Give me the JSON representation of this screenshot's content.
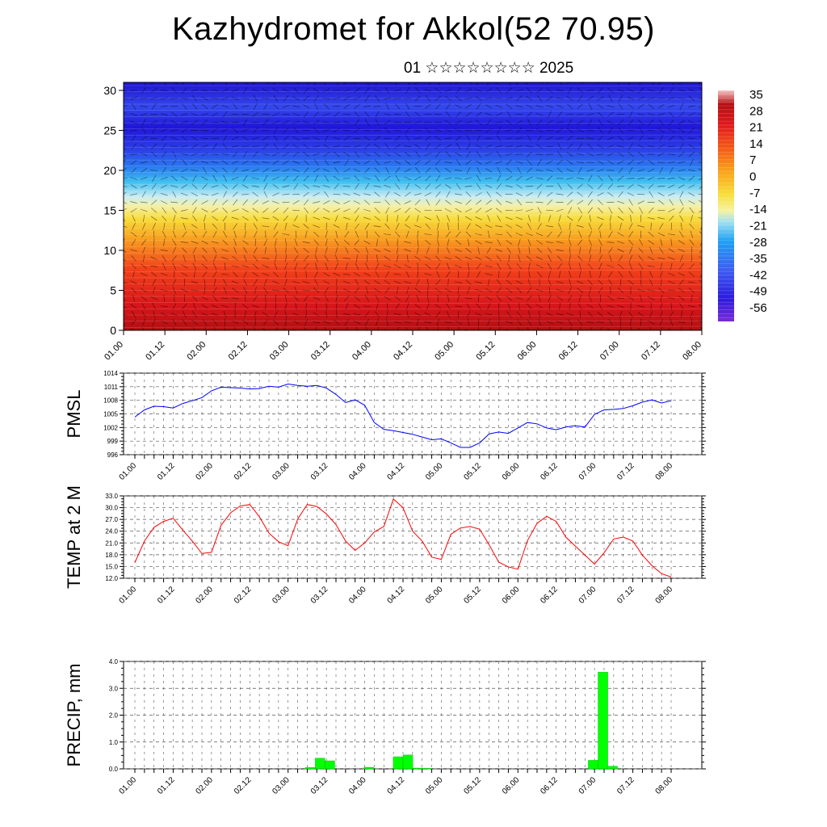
{
  "header": {
    "title": "Kazhydromet for Akkol(52 70.95)",
    "subtitle": "01 ☆☆☆☆☆☆☆☆ 2025"
  },
  "colors": {
    "pmsl_line": "#0000ff",
    "temp_line": "#ff0000",
    "precip_bar": "#00ff00",
    "grid": "#555555",
    "colormap": [
      "#7a2bd9",
      "#2b1bdc",
      "#3d5cf0",
      "#1fa2f4",
      "#3fd0f0",
      "#a8e6f2",
      "#f6f2a0",
      "#f8de3a",
      "#f9a21c",
      "#f45a16",
      "#e3191c",
      "#b30f12",
      "#f5c4c4"
    ]
  },
  "chart_data": [
    {
      "type": "heatmap",
      "title": "",
      "ylim": [
        0,
        31
      ],
      "yticks": [
        0,
        5,
        10,
        15,
        20,
        25,
        30
      ],
      "x_labels": [
        "01.00",
        "01.12",
        "02.00",
        "02.12",
        "03.00",
        "03.12",
        "04.00",
        "04.12",
        "05.00",
        "05.12",
        "06.00",
        "06.12",
        "07.00",
        "07.12",
        "08.00"
      ],
      "colorbar_labels": [
        "35",
        "28",
        "21",
        "14",
        "7",
        "0",
        "-7",
        "-14",
        "-21",
        "-28",
        "-35",
        "-42",
        "-49",
        "-56"
      ],
      "colorbar_range": [
        -63,
        42
      ],
      "overlay": "wind barbs"
    },
    {
      "type": "line",
      "ylabel": "PMSL",
      "ylim": [
        996,
        1014
      ],
      "yticks": [
        "996",
        "999",
        "1002",
        "1005",
        "1008",
        "1011",
        "1014"
      ],
      "x_labels": [
        "01.00",
        "01.12",
        "02.00",
        "02.12",
        "03.00",
        "03.12",
        "04.00",
        "04.12",
        "05.00",
        "05.12",
        "06.00",
        "06.12",
        "07.00",
        "07.12",
        "08.00"
      ],
      "series": [
        {
          "values": [
            1004.3,
            1005.9,
            1006.7,
            1006.6,
            1006.3,
            1007.3,
            1007.9,
            1008.6,
            1010.1,
            1010.9,
            1010.8,
            1010.7,
            1010.5,
            1010.6,
            1011.1,
            1010.9,
            1011.6,
            1011.3,
            1011.1,
            1011.3,
            1010.7,
            1009.3,
            1007.5,
            1008.1,
            1006.9,
            1003.1,
            1001.6,
            1001.3,
            1000.9,
            1000.5,
            999.9,
            999.3,
            999.5,
            998.6,
            997.6,
            997.6,
            998.6,
            1000.6,
            1001.0,
            1000.7,
            1001.9,
            1003.1,
            1002.8,
            1001.9,
            1001.5,
            1002.1,
            1002.4,
            1002.1,
            1004.9,
            1005.9,
            1006.0,
            1006.2,
            1006.8,
            1007.6,
            1008.1,
            1007.4,
            1007.9
          ]
        }
      ]
    },
    {
      "type": "line",
      "ylabel": "TEMP at 2 M",
      "ylim": [
        12.0,
        33.0
      ],
      "yticks": [
        "12.0",
        "15.0",
        "18.0",
        "21.0",
        "24.0",
        "27.0",
        "30.0",
        "33.0"
      ],
      "x_labels": [
        "01.00",
        "01.12",
        "02.00",
        "02.12",
        "03.00",
        "03.12",
        "04.00",
        "04.12",
        "05.00",
        "05.12",
        "06.00",
        "06.12",
        "07.00",
        "07.12",
        "08.00"
      ],
      "series": [
        {
          "values": [
            16.0,
            21.5,
            25.0,
            26.5,
            27.3,
            24.3,
            21.5,
            18.3,
            18.6,
            25.5,
            28.7,
            30.4,
            30.8,
            27.7,
            23.5,
            21.3,
            20.3,
            27.1,
            30.8,
            30.3,
            28.4,
            25.7,
            21.5,
            19.1,
            21.0,
            23.8,
            25.2,
            32.2,
            30.0,
            24.0,
            21.5,
            17.4,
            16.8,
            23.2,
            24.8,
            25.2,
            24.5,
            20.5,
            16.1,
            14.9,
            14.3,
            21.6,
            26.0,
            27.8,
            26.5,
            22.5,
            20.2,
            17.9,
            15.6,
            18.5,
            22.0,
            22.5,
            21.5,
            17.9,
            15.2,
            13.2,
            12.3
          ]
        }
      ]
    },
    {
      "type": "bar",
      "ylabel": "PRECIP, mm",
      "ylim": [
        0,
        4.0
      ],
      "yticks": [
        "0.0",
        "1.0",
        "2.0",
        "3.0",
        "4.0"
      ],
      "x_labels": [
        "01.00",
        "01.12",
        "02.00",
        "02.12",
        "03.00",
        "03.12",
        "04.00",
        "04.12",
        "05.00",
        "05.12",
        "06.00",
        "06.12",
        "07.00",
        "07.12",
        "08.00"
      ],
      "series": [
        {
          "values": [
            0,
            0,
            0,
            0,
            0,
            0,
            0,
            0,
            0,
            0,
            0,
            0,
            0,
            0,
            0,
            0,
            0,
            0,
            0.05,
            0.4,
            0.3,
            0,
            0,
            0,
            0.06,
            0,
            0,
            0.45,
            0.52,
            0.03,
            0.02,
            0,
            0,
            0,
            0,
            0,
            0,
            0,
            0,
            0,
            0,
            0,
            0,
            0,
            0,
            0,
            0,
            0.32,
            3.6,
            0.1,
            0,
            0,
            0,
            0,
            0,
            0
          ]
        }
      ]
    }
  ]
}
